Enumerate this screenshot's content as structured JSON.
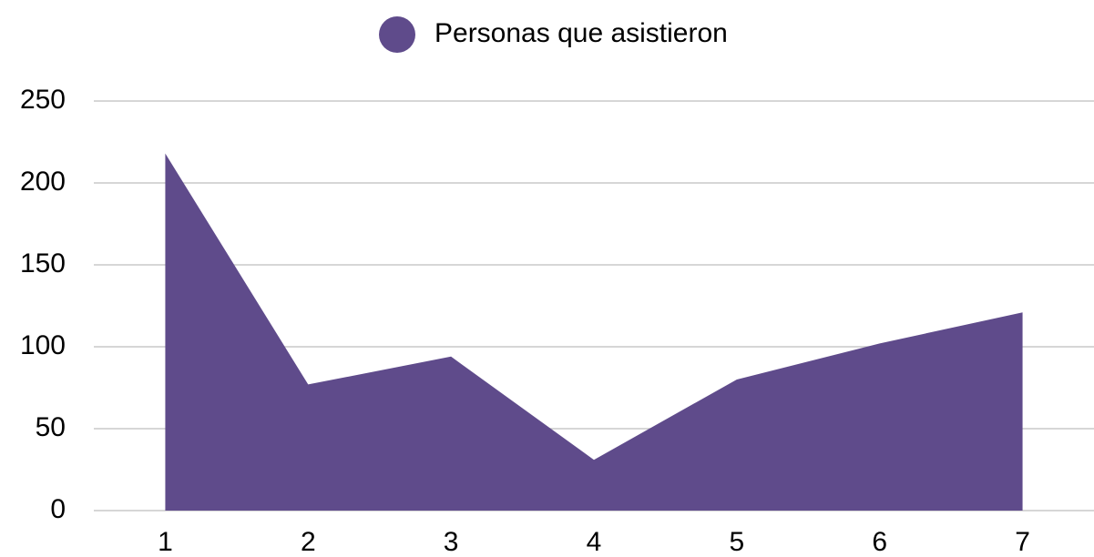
{
  "chart_data": {
    "type": "area",
    "categories": [
      "1",
      "2",
      "3",
      "4",
      "5",
      "6",
      "7"
    ],
    "series": [
      {
        "name": "Personas que asistieron",
        "color": "#5f4b8b",
        "values": [
          218,
          77,
          94,
          31,
          80,
          102,
          121
        ]
      }
    ],
    "ylim": [
      0,
      250
    ],
    "yticks": [
      0,
      50,
      100,
      150,
      200,
      250
    ],
    "grid": true,
    "legend": "top"
  }
}
